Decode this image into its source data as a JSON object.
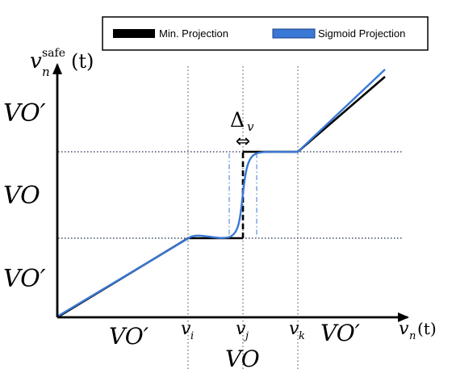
{
  "legend": {
    "items": [
      {
        "label": "Min. Projection",
        "color": "#000000"
      },
      {
        "label": "Sigmoid Projection",
        "color": "#3a78d6"
      }
    ]
  },
  "axes": {
    "y_label_main": "v",
    "y_label_sub": "n",
    "y_label_sup": "safe",
    "y_label_arg": "(t)",
    "x_label": "v",
    "x_label_sub": "n",
    "x_label_arg": "(t)"
  },
  "regions_y": {
    "top": "VO′",
    "middle": "VO",
    "bottom": "VO′"
  },
  "regions_x": {
    "left": "VO′",
    "right": "VO′",
    "bottom": "VO"
  },
  "ticks": {
    "vi_main": "v",
    "vi_sub": "i",
    "vj_main": "v",
    "vj_sub": "j",
    "vk_main": "v",
    "vk_sub": "k"
  },
  "delta": {
    "main": "Δ",
    "sub": "v",
    "arrow": "⇔"
  }
}
